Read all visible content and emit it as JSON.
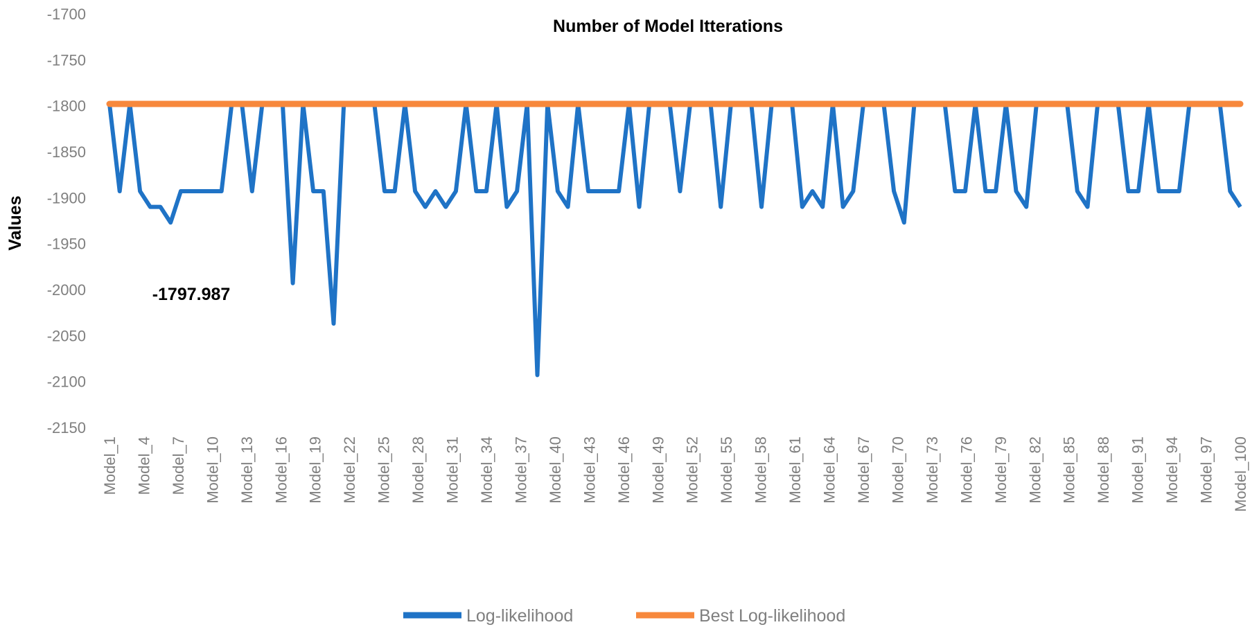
{
  "chart_data": {
    "type": "line",
    "title": "Number of Model Itterations",
    "xlabel": "",
    "ylabel": "Values",
    "ylim": [
      -2150,
      -1700
    ],
    "yticks": [
      -1700,
      -1750,
      -1800,
      -1850,
      -1900,
      -1950,
      -2000,
      -2050,
      -2100,
      -2150
    ],
    "x_tick_labels": [
      "Model_1",
      "Model_4",
      "Model_7",
      "Model_10",
      "Model_13",
      "Model_16",
      "Model_19",
      "Model_22",
      "Model_25",
      "Model_28",
      "Model_31",
      "Model_34",
      "Model_37",
      "Model_40",
      "Model_43",
      "Model_46",
      "Model_49",
      "Model_52",
      "Model_55",
      "Model_58",
      "Model_61",
      "Model_64",
      "Model_67",
      "Model_70",
      "Model_73",
      "Model_76",
      "Model_79",
      "Model_82",
      "Model_85",
      "Model_88",
      "Model_91",
      "Model_94",
      "Model_97",
      "Model_100"
    ],
    "annotation": "-1797.987",
    "legend_position": "bottom",
    "series": [
      {
        "name": "Log-likelihood",
        "color": "#1f73c6",
        "values": [
          -1798,
          -1893,
          -1798,
          -1893,
          -1910,
          -1910,
          -1927,
          -1893,
          -1893,
          -1893,
          -1893,
          -1893,
          -1798,
          -1798,
          -1893,
          -1798,
          -1798,
          -1798,
          -1993,
          -1798,
          -1893,
          -1893,
          -2037,
          -1798,
          -1798,
          -1798,
          -1798,
          -1893,
          -1893,
          -1798,
          -1893,
          -1910,
          -1893,
          -1910,
          -1893,
          -1798,
          -1893,
          -1893,
          -1798,
          -1910,
          -1893,
          -1798,
          -2093,
          -1798,
          -1893,
          -1910,
          -1798,
          -1893,
          -1893,
          -1893,
          -1893,
          -1798,
          -1910,
          -1798,
          -1798,
          -1798,
          -1893,
          -1798,
          -1798,
          -1798,
          -1910,
          -1798,
          -1798,
          -1798,
          -1910,
          -1798,
          -1798,
          -1798,
          -1910,
          -1893,
          -1910,
          -1798,
          -1910,
          -1893,
          -1798,
          -1798,
          -1798,
          -1893,
          -1927,
          -1798,
          -1798,
          -1798,
          -1798,
          -1893,
          -1893,
          -1798,
          -1893,
          -1893,
          -1798,
          -1893,
          -1910,
          -1798,
          -1798,
          -1798,
          -1798,
          -1893,
          -1910,
          -1798,
          -1798,
          -1798,
          -1893,
          -1893,
          -1798,
          -1893,
          -1893,
          -1893,
          -1798,
          -1798,
          -1798,
          -1798,
          -1893,
          -1910
        ]
      },
      {
        "name": "Best Log-likelihood",
        "color": "#f7883c",
        "values": "constant",
        "constant_value": -1797.987
      }
    ]
  }
}
